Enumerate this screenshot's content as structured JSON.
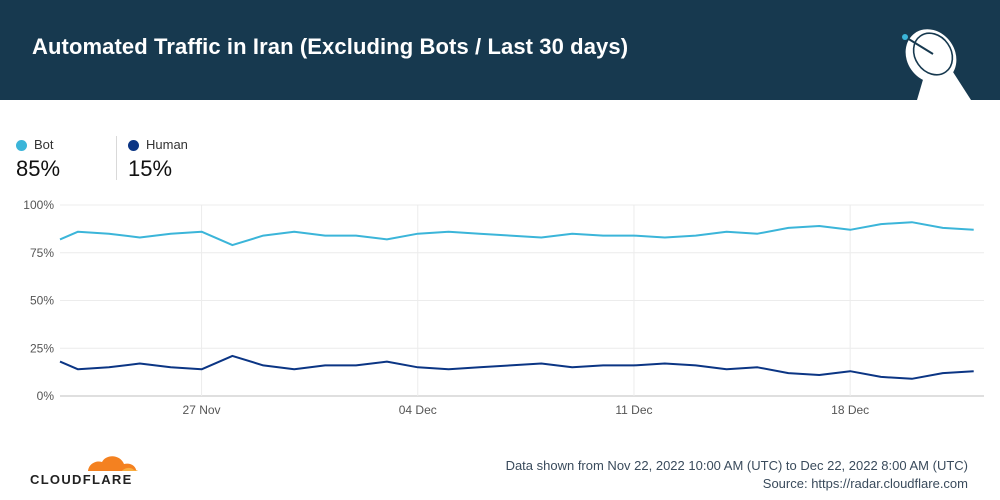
{
  "header": {
    "title": "Automated Traffic in Iran (Excluding Bots / Last 30 days)",
    "icon": "satellite-dish-icon"
  },
  "legend": [
    {
      "name": "Bot",
      "value": "85%",
      "color": "#3bb5d9"
    },
    {
      "name": "Human",
      "value": "15%",
      "color": "#0b3584"
    }
  ],
  "chart_data": {
    "type": "line",
    "x_start": "2022-11-22T10:00",
    "x_end": "2022-12-22T08:00",
    "x_ticks": [
      {
        "date": "2022-11-27",
        "label": "27 Nov"
      },
      {
        "date": "2022-12-04",
        "label": "04 Dec"
      },
      {
        "date": "2022-12-11",
        "label": "11 Dec"
      },
      {
        "date": "2022-12-18",
        "label": "18 Dec"
      }
    ],
    "y_ticks": [
      "0%",
      "25%",
      "50%",
      "75%",
      "100%"
    ],
    "ylim": [
      0,
      100
    ],
    "grid": true,
    "series": [
      {
        "name": "Bot",
        "color": "#3bb5d9",
        "x": [
          "2022-11-22",
          "2022-11-23",
          "2022-11-24",
          "2022-11-25",
          "2022-11-26",
          "2022-11-27",
          "2022-11-28",
          "2022-11-29",
          "2022-11-30",
          "2022-12-01",
          "2022-12-02",
          "2022-12-03",
          "2022-12-04",
          "2022-12-05",
          "2022-12-06",
          "2022-12-07",
          "2022-12-08",
          "2022-12-09",
          "2022-12-10",
          "2022-12-11",
          "2022-12-12",
          "2022-12-13",
          "2022-12-14",
          "2022-12-15",
          "2022-12-16",
          "2022-12-17",
          "2022-12-18",
          "2022-12-19",
          "2022-12-20",
          "2022-12-21",
          "2022-12-22"
        ],
        "values": [
          82,
          86,
          85,
          83,
          85,
          86,
          79,
          84,
          86,
          84,
          84,
          82,
          85,
          86,
          85,
          84,
          83,
          85,
          84,
          84,
          83,
          84,
          86,
          85,
          88,
          89,
          87,
          90,
          91,
          88,
          87
        ]
      },
      {
        "name": "Human",
        "color": "#0b3584",
        "x": [
          "2022-11-22",
          "2022-11-23",
          "2022-11-24",
          "2022-11-25",
          "2022-11-26",
          "2022-11-27",
          "2022-11-28",
          "2022-11-29",
          "2022-11-30",
          "2022-12-01",
          "2022-12-02",
          "2022-12-03",
          "2022-12-04",
          "2022-12-05",
          "2022-12-06",
          "2022-12-07",
          "2022-12-08",
          "2022-12-09",
          "2022-12-10",
          "2022-12-11",
          "2022-12-12",
          "2022-12-13",
          "2022-12-14",
          "2022-12-15",
          "2022-12-16",
          "2022-12-17",
          "2022-12-18",
          "2022-12-19",
          "2022-12-20",
          "2022-12-21",
          "2022-12-22"
        ],
        "values": [
          18,
          14,
          15,
          17,
          15,
          14,
          21,
          16,
          14,
          16,
          16,
          18,
          15,
          14,
          15,
          16,
          17,
          15,
          16,
          16,
          17,
          16,
          14,
          15,
          12,
          11,
          13,
          10,
          9,
          12,
          13
        ]
      }
    ]
  },
  "footer": {
    "logo_text": "CLOUDFLARE",
    "range_text": "Data shown from Nov 22, 2022 10:00 AM (UTC) to Dec 22, 2022 8:00 AM (UTC)",
    "source_text": "Source: https://radar.cloudflare.com"
  }
}
